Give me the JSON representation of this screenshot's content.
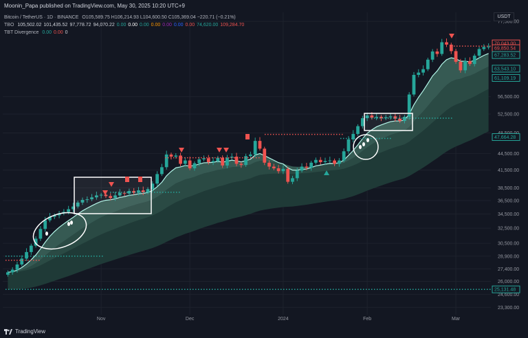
{
  "header": {
    "publisher": "Moonin_Papa published on TradingView.com, May 30, 2025 10:20 UTC+9"
  },
  "legend": {
    "symbol": "Bitcoin / TetherUS · 1D · BINANCE",
    "ohlc": "O105,589.75 H106,214.93 L104,600.50 C105,369.04 −220.71 (−0.21%)",
    "tbo_label": "TBO",
    "tbo_values": [
      "105,502.02",
      "101,435.52",
      "97,778.72",
      "94,070.22",
      "0.00",
      "0.00",
      "0.00",
      "0.00",
      "0.00",
      "0.00",
      "0.00",
      "74,620.00",
      "109,284.70"
    ],
    "tbo_colors": [
      "#d1d4dc",
      "#d1d4dc",
      "#d1d4dc",
      "#d1d4dc",
      "#26a69a",
      "#ffffff",
      "#26a69a",
      "#ff9800",
      "#9c27b0",
      "#2962ff",
      "#ef5350",
      "#26a69a",
      "#ef5350"
    ],
    "tbt_label": "TBT Divergence",
    "tbt_values": [
      "0.00",
      "0.00",
      "0"
    ],
    "tbt_colors": [
      "#26a69a",
      "#ef5350",
      "#d1d4dc"
    ]
  },
  "currency": "USDT",
  "footer": {
    "brand": "TradingView"
  },
  "colors": {
    "up": "#26a69a",
    "down": "#ef5350",
    "ma": "#b2f5e8",
    "band": "#2a4a44",
    "bg": "#131722"
  },
  "chart_data": {
    "type": "candlestick",
    "symbol": "BTCUSDT",
    "timeframe": "1D",
    "x_ticks": [
      "Nov",
      "Dec",
      "2024",
      "Feb",
      "Mar"
    ],
    "y_ticks": [
      "77,500.00",
      "56,500.00",
      "52,500.00",
      "48,500.00",
      "44,500.00",
      "41,500.00",
      "38,500.00",
      "36,500.00",
      "34,500.00",
      "32,500.00",
      "30,500.00",
      "28,900.00",
      "27,400.00",
      "26,000.00",
      "24,600.00",
      "23,300.00"
    ],
    "y_tick_values": [
      77500,
      56500,
      52500,
      48500,
      44500,
      41500,
      38500,
      36500,
      34500,
      32500,
      30500,
      28900,
      27400,
      26000,
      24600,
      23300
    ],
    "price_tags": [
      {
        "label": "70,043.00",
        "value": 70043,
        "color": "#ef5350"
      },
      {
        "label": "69,850.54",
        "value": 69850.54,
        "color": "#ef5350"
      },
      {
        "label": "67,283.52",
        "value": 67283.52,
        "color": "#26a69a"
      },
      {
        "label": "63,543.10",
        "value": 63543.1,
        "color": "#26a69a"
      },
      {
        "label": "61,109.19",
        "value": 61109.19,
        "color": "#26a69a"
      },
      {
        "label": "47,664.28",
        "value": 47664.28,
        "color": "#26a69a"
      },
      {
        "label": "25,131.48",
        "value": 25131.48,
        "color": "#26a69a"
      }
    ],
    "close_series": [
      27000,
      27300,
      27900,
      28600,
      29400,
      30200,
      31100,
      32400,
      33600,
      34100,
      34300,
      34600,
      34800,
      35200,
      35600,
      36200,
      36600,
      36700,
      37000,
      37300,
      37400,
      37200,
      36900,
      37300,
      37700,
      37600,
      38000,
      37700,
      38100,
      37800,
      38300,
      39200,
      40800,
      42000,
      44300,
      43900,
      44100,
      42600,
      43200,
      41800,
      42700,
      43400,
      43600,
      42900,
      43100,
      43700,
      42300,
      43700,
      43900,
      42600,
      42400,
      44000,
      44300,
      46900,
      45400,
      42800,
      42100,
      41800,
      41300,
      41700,
      39500,
      40100,
      41400,
      42100,
      41900,
      42800,
      43300,
      42900,
      43100,
      43200,
      42600,
      43200,
      44900,
      47200,
      48300,
      49900,
      51600,
      52200,
      51700,
      51900,
      51600,
      51800,
      52000,
      51500,
      51000,
      51900,
      57000,
      61900,
      62500,
      63400,
      66000,
      68300,
      67600,
      71000,
      70300,
      68400,
      65400,
      63100,
      65600,
      64800,
      67100,
      69000,
      69600,
      69700
    ]
  }
}
